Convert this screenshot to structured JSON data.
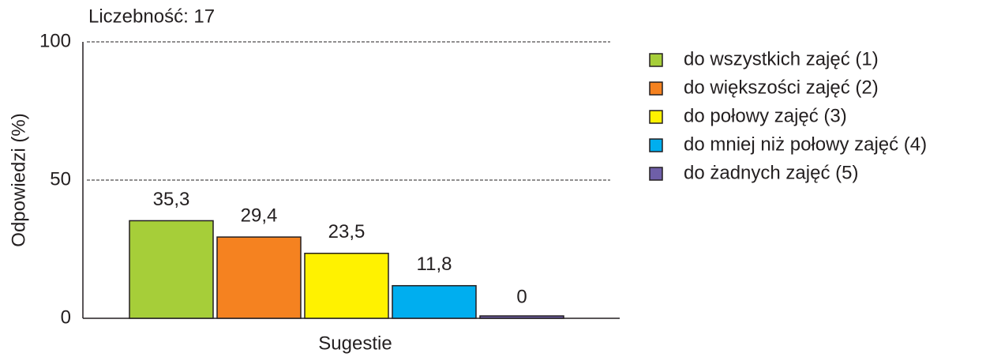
{
  "chart_data": {
    "type": "bar",
    "title": "Liczebność: 17",
    "y_label": "Odpowiedzi (%)",
    "categories": [
      "Sugestie"
    ],
    "series": [
      {
        "name": "do wszystkich zajęć (1)",
        "color": "#a6ce39",
        "values": [
          35.3
        ],
        "value_labels": [
          "35,3"
        ]
      },
      {
        "name": "do większości zajęć (2)",
        "color": "#f58220",
        "values": [
          29.4
        ],
        "value_labels": [
          "29,4"
        ]
      },
      {
        "name": "do połowy zajęć (3)",
        "color": "#fff200",
        "values": [
          23.5
        ],
        "value_labels": [
          "23,5"
        ]
      },
      {
        "name": "do mniej niż połowy zajęć (4)",
        "color": "#00aeef",
        "values": [
          11.8
        ],
        "value_labels": [
          "11,8"
        ]
      },
      {
        "name": "do żadnych zajęć (5)",
        "color": "#6f5fa8",
        "values": [
          0
        ],
        "value_labels": [
          "0"
        ]
      }
    ],
    "ylim": [
      0,
      100
    ],
    "yticks": [
      0,
      50,
      100
    ],
    "grid": true,
    "legend": "right"
  }
}
